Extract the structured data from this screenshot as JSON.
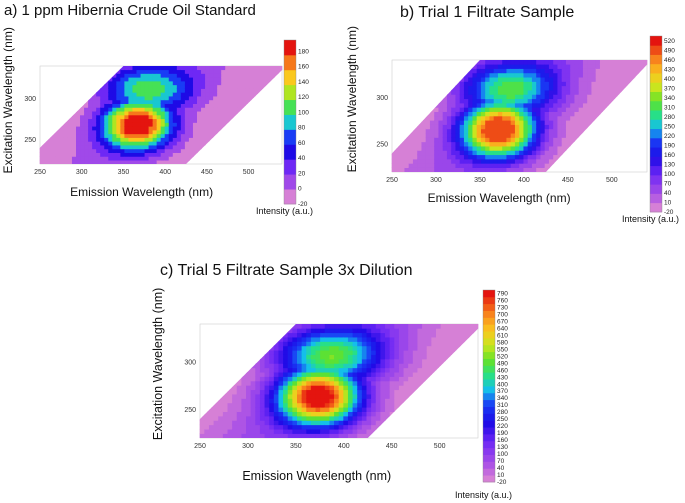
{
  "chart_data": [
    {
      "type": "heatmap",
      "panel_label": "a)",
      "title": "1 ppm Hibernia Crude Oil Standard",
      "xlabel": "Emission Wavelength (nm)",
      "ylabel": "Excitation Wavelength (nm)",
      "xticks": [
        250,
        300,
        350,
        400,
        450,
        500
      ],
      "yticks": [
        250,
        300
      ],
      "xlim": [
        250,
        540
      ],
      "ylim": [
        220,
        340
      ],
      "colorbar_label": "Intensity (a.u.)",
      "colorbar_levels": [
        -20,
        0,
        20,
        40,
        60,
        80,
        100,
        120,
        140,
        160,
        180,
        195
      ],
      "colorbar_ticks": [
        -20,
        0,
        20,
        40,
        60,
        80,
        100,
        120,
        140,
        160,
        180
      ],
      "peak": {
        "emission": 367,
        "excitation": 268,
        "intensity": 190
      }
    },
    {
      "type": "heatmap",
      "panel_label": "b)",
      "title": "Trial 1 Filtrate Sample",
      "xlabel": "Emission Wavelength (nm)",
      "ylabel": "Excitation Wavelength (nm)",
      "xticks": [
        250,
        300,
        350,
        400,
        450,
        500
      ],
      "yticks": [
        250,
        300
      ],
      "xlim": [
        250,
        540
      ],
      "ylim": [
        220,
        340
      ],
      "colorbar_label": "Intensity (a.u.)",
      "colorbar_levels": [
        -20,
        10,
        40,
        70,
        100,
        130,
        160,
        190,
        220,
        250,
        280,
        310,
        340,
        370,
        400,
        430,
        460,
        490,
        520,
        535
      ],
      "colorbar_ticks": [
        520,
        490,
        460,
        430,
        400,
        370,
        340,
        310,
        280,
        250,
        220,
        190,
        160,
        130,
        100,
        70,
        40,
        10,
        -20
      ],
      "peak": {
        "emission": 372,
        "excitation": 265,
        "intensity": 520
      }
    },
    {
      "type": "heatmap",
      "panel_label": "c)",
      "title": "Trial 5 Filtrate Sample 3x Dilution",
      "xlabel": "Emission Wavelength (nm)",
      "ylabel": "Excitation Wavelength (nm)",
      "xticks": [
        250,
        300,
        350,
        400,
        450,
        500
      ],
      "yticks": [
        250,
        300
      ],
      "xlim": [
        250,
        540
      ],
      "ylim": [
        220,
        340
      ],
      "colorbar_label": "Intensity (a.u.)",
      "colorbar_levels": [
        -20,
        10,
        40,
        70,
        100,
        130,
        160,
        190,
        220,
        250,
        280,
        310,
        340,
        370,
        400,
        430,
        460,
        490,
        520,
        550,
        580,
        610,
        640,
        670,
        700,
        730,
        760,
        790,
        805
      ],
      "colorbar_ticks": [
        790,
        760,
        730,
        700,
        670,
        640,
        610,
        580,
        550,
        520,
        490,
        460,
        430,
        400,
        370,
        340,
        310,
        280,
        250,
        220,
        190,
        160,
        130,
        100,
        70,
        40,
        10,
        -20
      ],
      "peak": {
        "emission": 375,
        "excitation": 263,
        "intensity": 800
      }
    }
  ],
  "panels": [
    {
      "title": "a)  1 ppm Hibernia Crude Oil Standard"
    },
    {
      "title": "b)    Trial 1 Filtrate Sample"
    },
    {
      "title": "c) Trial 5 Filtrate Sample 3x Dilution"
    }
  ]
}
